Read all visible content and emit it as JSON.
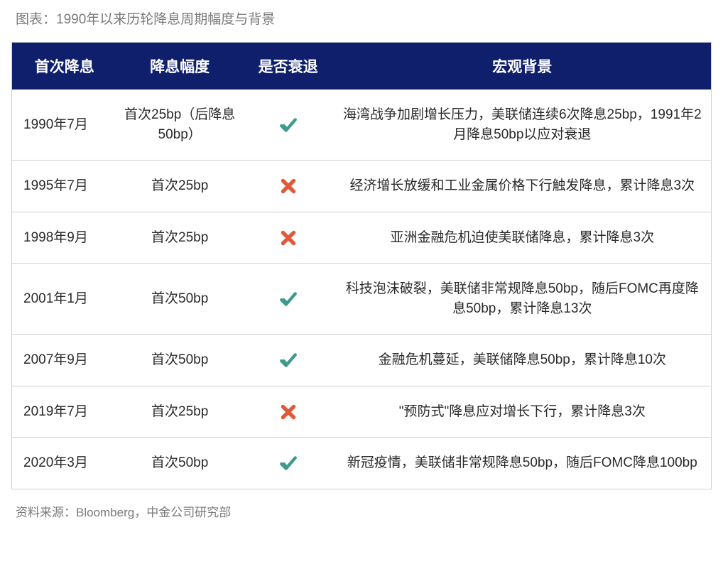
{
  "title": "图表：1990年以来历轮降息周期幅度与背景",
  "source": "资料来源：Bloomberg，中金公司研究部",
  "table": {
    "type": "table",
    "header_bg": "#0f1f6b",
    "header_color": "#ffffff",
    "border_color": "#d0d0d0",
    "check_color": "#3d9a8c",
    "cross_color": "#e05a3a",
    "columns": [
      "首次降息",
      "降息幅度",
      "是否衰退",
      "宏观背景"
    ],
    "rows": [
      {
        "date": "1990年7月",
        "amount": "首次25bp（后降息50bp）",
        "recession": true,
        "background": "海湾战争加剧增长压力，美联储连续6次降息25bp，1991年2月降息50bp以应对衰退"
      },
      {
        "date": "1995年7月",
        "amount": "首次25bp",
        "recession": false,
        "background": "经济增长放缓和工业金属价格下行触发降息，累计降息3次"
      },
      {
        "date": "1998年9月",
        "amount": "首次25bp",
        "recession": false,
        "background": "亚洲金融危机迫使美联储降息，累计降息3次"
      },
      {
        "date": "2001年1月",
        "amount": "首次50bp",
        "recession": true,
        "background": "科技泡沫破裂，美联储非常规降息50bp，随后FOMC再度降息50bp，累计降息13次"
      },
      {
        "date": "2007年9月",
        "amount": "首次50bp",
        "recession": true,
        "background": "金融危机蔓延，美联储降息50bp，累计降息10次"
      },
      {
        "date": "2019年7月",
        "amount": "首次25bp",
        "recession": false,
        "background": "\"预防式\"降息应对增长下行，累计降息3次"
      },
      {
        "date": "2020年3月",
        "amount": "首次50bp",
        "recession": true,
        "background": "新冠疫情，美联储非常规降息50bp，随后FOMC降息100bp"
      }
    ]
  }
}
